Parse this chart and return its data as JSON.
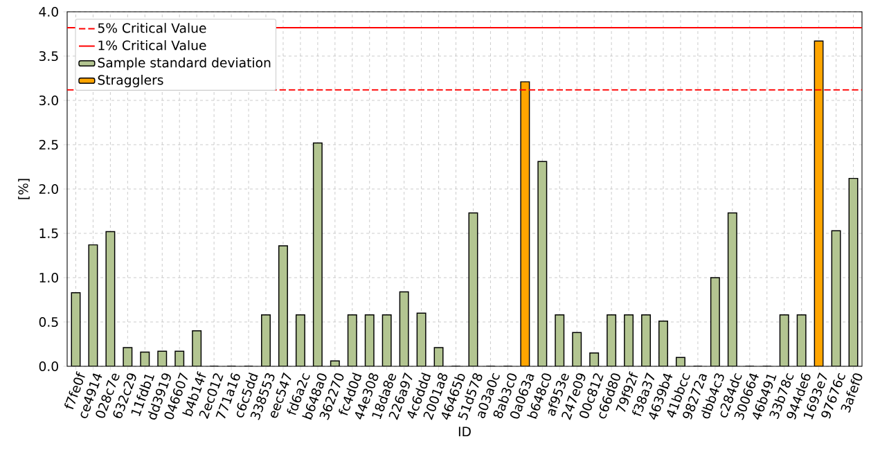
{
  "chart_data": {
    "type": "bar",
    "xlabel": "ID",
    "ylabel": "[%]",
    "categories": [
      "f7fe0f",
      "ce4914",
      "028c7e",
      "632c29",
      "11fdb1",
      "dd3919",
      "046607",
      "b4b14f",
      "2ec012",
      "771a16",
      "c6c5dd",
      "338553",
      "eec547",
      "fd6a2c",
      "b648a0",
      "362270",
      "fc4d0d",
      "44e308",
      "18da8e",
      "226a97",
      "4c6ddd",
      "2001a8",
      "46465b",
      "51d578",
      "a03a0c",
      "8ab3c0",
      "0a063a",
      "b648c0",
      "af953e",
      "247e09",
      "00c812",
      "c66d80",
      "79f92f",
      "f38a37",
      "4639b4",
      "41bbcc",
      "98272a",
      "dbb4c3",
      "c284dc",
      "300664",
      "46b491",
      "33b78c",
      "944de6",
      "1693e7",
      "97676c",
      "3afef0"
    ],
    "series": [
      {
        "name": "Sample standard deviation",
        "color": "#b3c591",
        "values": [
          0.83,
          1.37,
          1.52,
          0.21,
          0.16,
          0.17,
          0.17,
          0.4,
          0,
          0,
          0,
          0.58,
          1.36,
          0.58,
          2.52,
          0.06,
          0.58,
          0.58,
          0.58,
          0.84,
          0.6,
          0.21,
          0,
          1.73,
          0,
          0,
          null,
          2.31,
          0.58,
          0.38,
          0.15,
          0.58,
          0.58,
          0.58,
          0.51,
          0.1,
          0,
          1.0,
          1.73,
          0,
          0,
          0.58,
          0.58,
          null,
          1.53,
          2.12
        ]
      },
      {
        "name": "Stragglers",
        "color": "#ffa500",
        "values": [
          null,
          null,
          null,
          null,
          null,
          null,
          null,
          null,
          null,
          null,
          null,
          null,
          null,
          null,
          null,
          null,
          null,
          null,
          null,
          null,
          null,
          null,
          null,
          null,
          null,
          null,
          3.21,
          null,
          null,
          null,
          null,
          null,
          null,
          null,
          null,
          null,
          null,
          null,
          null,
          null,
          null,
          null,
          null,
          3.67,
          null,
          null
        ]
      }
    ],
    "ref_lines": [
      {
        "axis": "y",
        "value": 3.12,
        "label": "5% Critical Value",
        "color": "#ff0000",
        "line_style": "dashed"
      },
      {
        "axis": "y",
        "value": 3.82,
        "label": "1% Critical Value",
        "color": "#ff0000",
        "line_style": "solid"
      }
    ],
    "ylim": [
      0,
      4.0
    ],
    "yticks": [
      {
        "value": 0,
        "label": "0.0"
      },
      {
        "value": 0.5,
        "label": "0.5"
      },
      {
        "value": 1,
        "label": "1.0"
      },
      {
        "value": 1.5,
        "label": "1.5"
      },
      {
        "value": 2,
        "label": "2.0"
      },
      {
        "value": 2.5,
        "label": "2.5"
      },
      {
        "value": 3,
        "label": "3.0"
      },
      {
        "value": 3.5,
        "label": "3.5"
      },
      {
        "value": 4,
        "label": "4.0"
      }
    ],
    "grid": true,
    "legend": "top left"
  }
}
